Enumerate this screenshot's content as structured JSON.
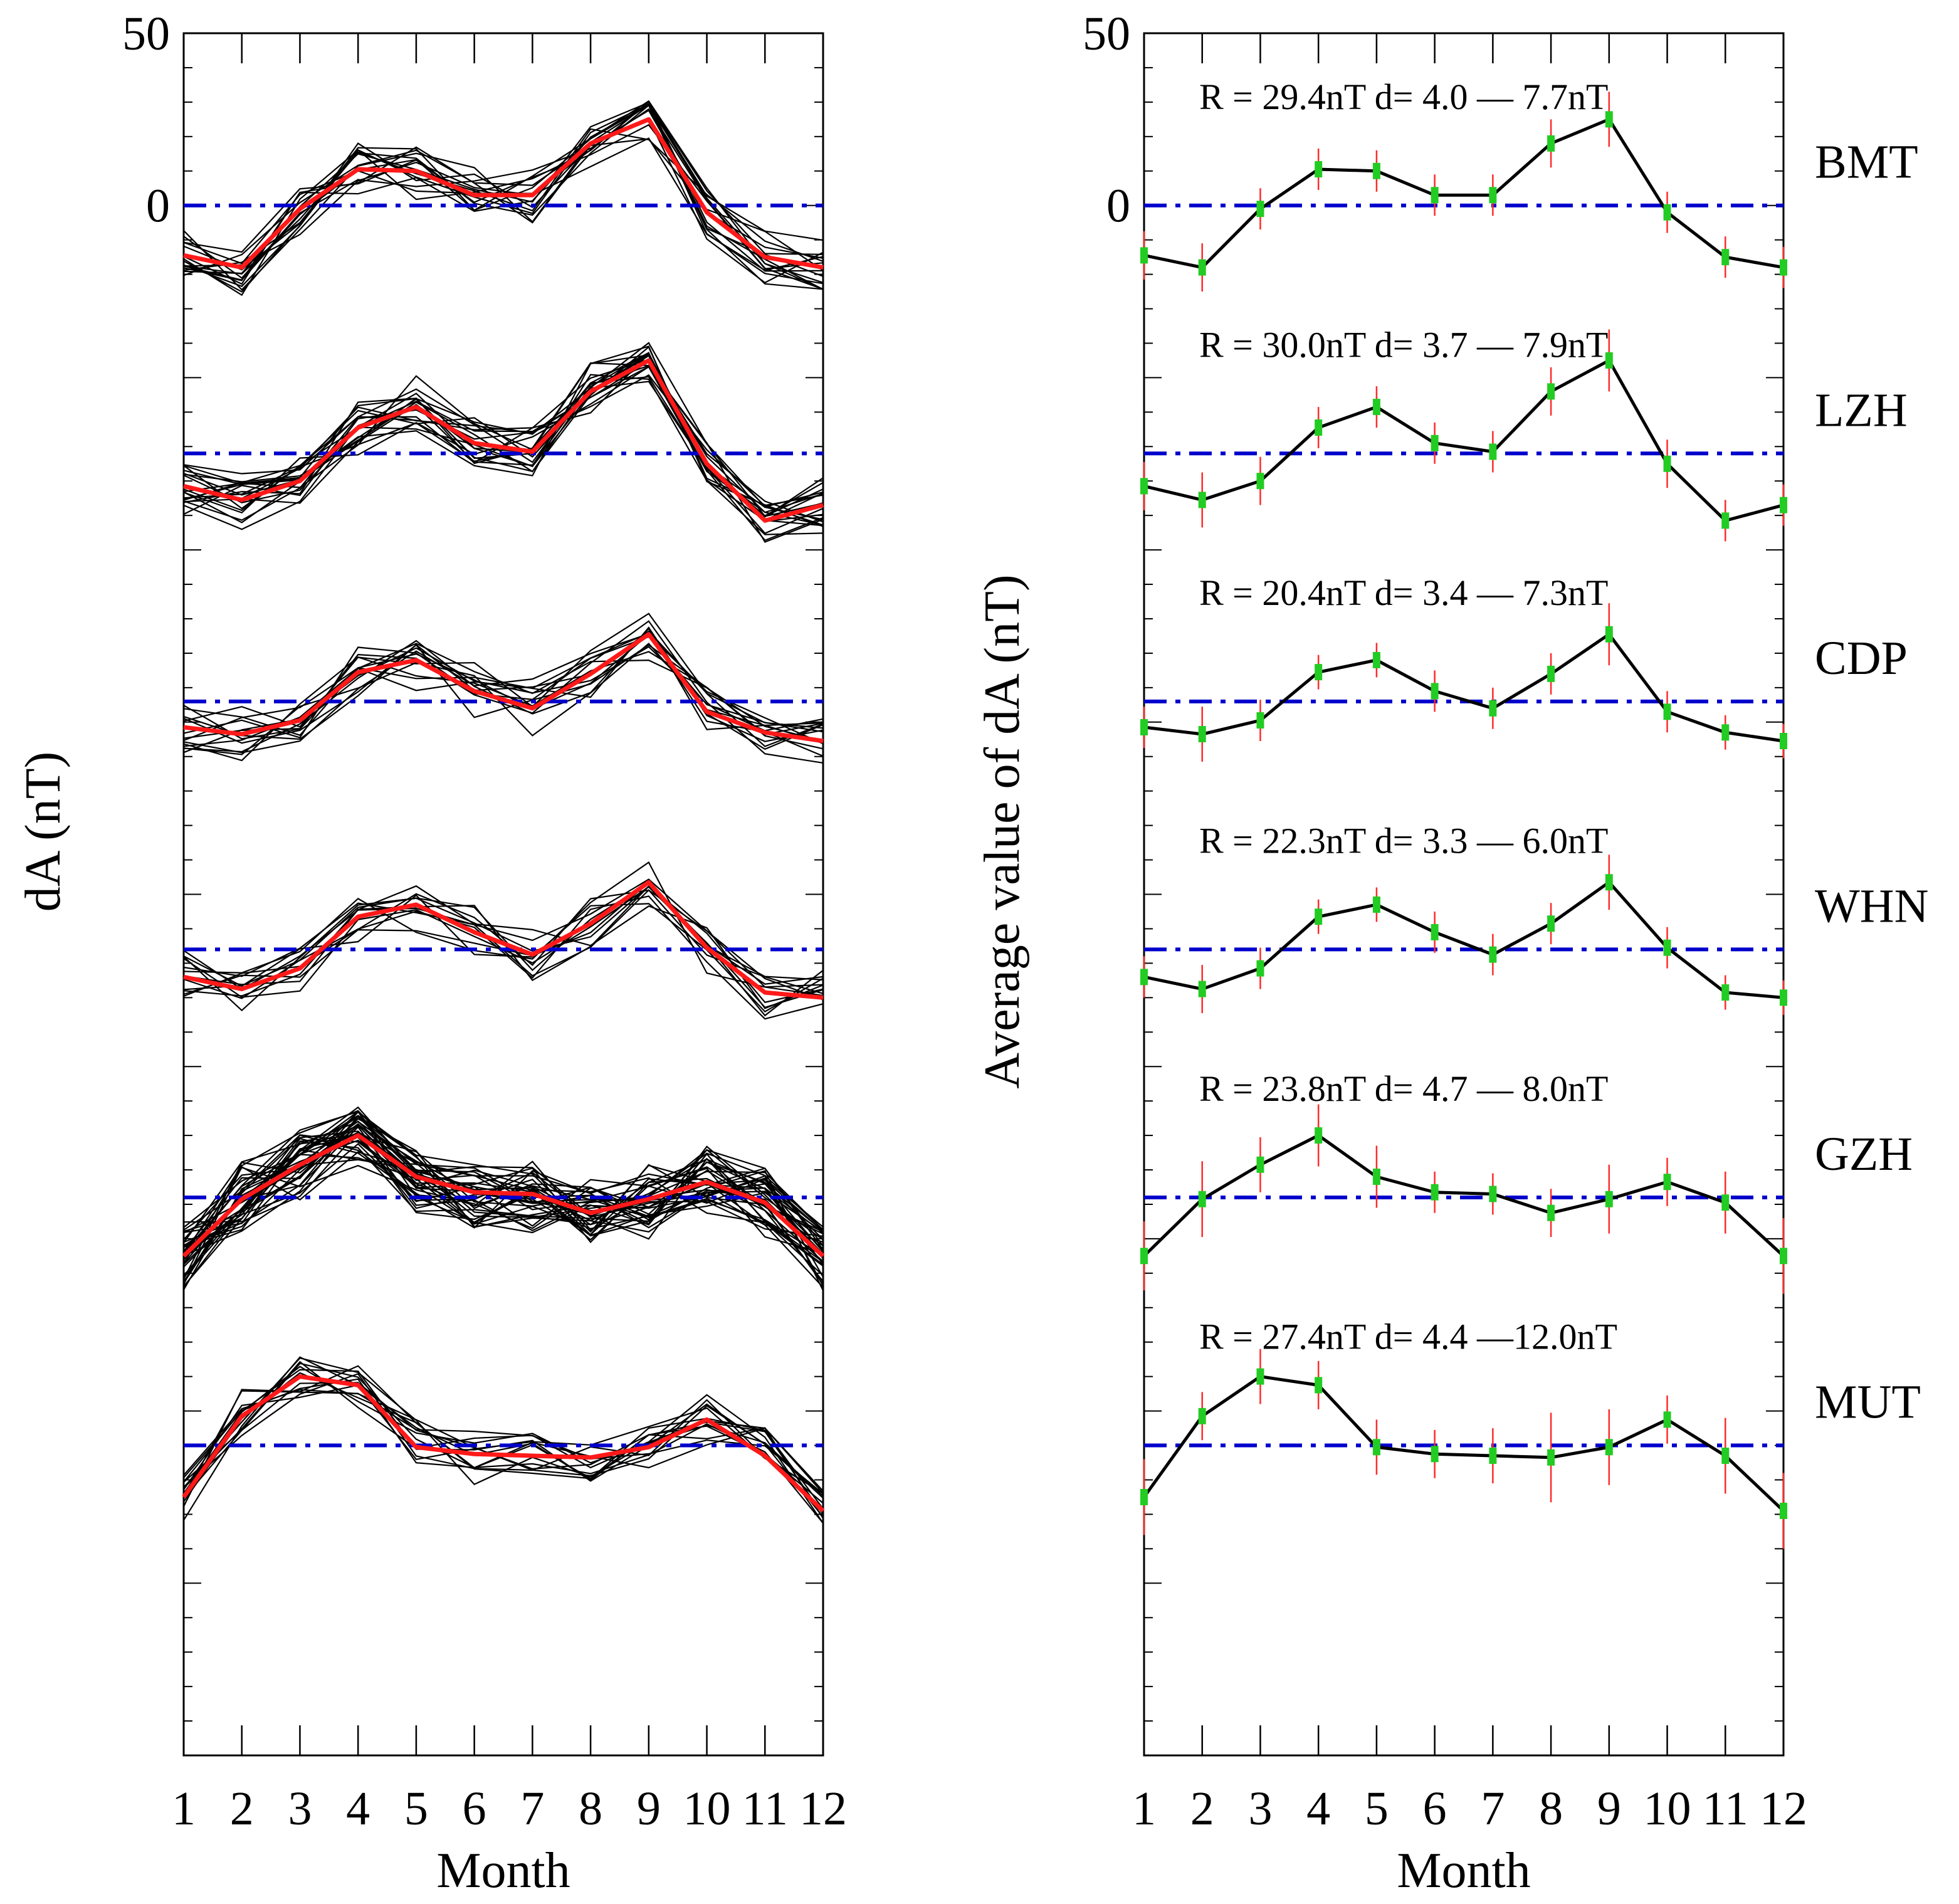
{
  "chart_data": [
    {
      "type": "line",
      "panel": "left",
      "xlabel": "Month",
      "ylabel": "dA (nT)",
      "x": [
        1,
        2,
        3,
        4,
        5,
        6,
        7,
        8,
        9,
        10,
        11,
        12
      ],
      "x_tick_labels": [
        "1",
        "2",
        "3",
        "4",
        "5",
        "6",
        "7",
        "8",
        "9",
        "10",
        "11",
        "12"
      ],
      "y_tick_labels": [
        "50",
        "0"
      ],
      "ylim": [
        -450,
        50
      ],
      "reference_line_color": "#0000cc",
      "mean_line_color": "#ff1a1a",
      "individual_line_color": "#000000",
      "stations": [
        {
          "name": "BMT",
          "offset": 0,
          "n_lines": 16,
          "mean": [
            -14.5,
            -18.0,
            -1.0,
            10.5,
            10.0,
            3.0,
            3.0,
            18.0,
            25.0,
            -2.0,
            -15.0,
            -18.0
          ]
        },
        {
          "name": "LZH",
          "offset": -72,
          "n_lines": 20,
          "mean": [
            -9.5,
            -13.5,
            -8.0,
            7.5,
            13.5,
            3.0,
            0.5,
            18.0,
            27.0,
            -3.0,
            -19.5,
            -15.0
          ]
        },
        {
          "name": "CDP",
          "offset": -144,
          "n_lines": 14,
          "mean": [
            -7.5,
            -9.5,
            -5.5,
            8.5,
            12.0,
            3.0,
            -2.0,
            8.0,
            19.5,
            -3.0,
            -9.0,
            -11.5
          ]
        },
        {
          "name": "WHN",
          "offset": -216,
          "n_lines": 12,
          "mean": [
            -8.0,
            -11.5,
            -5.5,
            9.5,
            13.0,
            5.0,
            -1.5,
            7.5,
            19.5,
            0.5,
            -12.5,
            -14.0
          ]
        },
        {
          "name": "GZH",
          "offset": -288,
          "n_lines": 36,
          "mean": [
            -17.0,
            -0.5,
            9.5,
            18.0,
            6.0,
            1.5,
            1.0,
            -4.5,
            -0.5,
            4.5,
            -1.5,
            -17.0
          ]
        },
        {
          "name": "MUT",
          "offset": -360,
          "n_lines": 14,
          "mean": [
            -15.0,
            8.5,
            20.0,
            17.5,
            -0.5,
            -2.5,
            -3.0,
            -3.5,
            -0.5,
            7.5,
            -3.0,
            -19.0
          ]
        }
      ]
    },
    {
      "type": "line",
      "panel": "right",
      "xlabel": "Month",
      "ylabel": "Average value of dA (nT)",
      "x": [
        1,
        2,
        3,
        4,
        5,
        6,
        7,
        8,
        9,
        10,
        11,
        12
      ],
      "x_tick_labels": [
        "1",
        "2",
        "3",
        "4",
        "5",
        "6",
        "7",
        "8",
        "9",
        "10",
        "11",
        "12"
      ],
      "y_tick_labels": [
        "50",
        "0"
      ],
      "ylim": [
        -450,
        50
      ],
      "line_color": "#000000",
      "marker_color": "#22cc22",
      "errorbar_color": "#ff2a2a",
      "reference_line_color": "#0000cc",
      "stations": [
        {
          "name": "BMT",
          "stat": "R = 29.4nT  d= 4.0 — 7.7nT",
          "offset": 0,
          "mean": [
            -14.5,
            -18.0,
            -1.0,
            10.5,
            10.0,
            3.0,
            3.0,
            18.0,
            25.0,
            -2.0,
            -15.0,
            -18.0
          ],
          "err": [
            7,
            7,
            6,
            6,
            6,
            6,
            6,
            7,
            8,
            6,
            6,
            6
          ]
        },
        {
          "name": "LZH",
          "stat": "R = 30.0nT  d= 3.7 — 7.9nT",
          "offset": -72,
          "mean": [
            -9.5,
            -13.5,
            -8.0,
            7.5,
            13.5,
            3.0,
            0.5,
            18.0,
            27.0,
            -3.0,
            -19.5,
            -15.0
          ],
          "err": [
            7,
            8,
            7,
            6,
            6,
            6,
            6,
            7,
            9,
            7,
            6,
            6
          ]
        },
        {
          "name": "CDP",
          "stat": "R = 20.4nT  d= 3.4 — 7.3nT",
          "offset": -144,
          "mean": [
            -7.5,
            -9.5,
            -5.5,
            8.5,
            12.0,
            3.0,
            -2.0,
            8.0,
            19.5,
            -3.0,
            -9.0,
            -11.5
          ],
          "err": [
            6,
            8,
            6,
            5,
            5,
            6,
            6,
            6,
            9,
            6,
            5,
            5
          ]
        },
        {
          "name": "WHN",
          "stat": "R = 22.3nT  d= 3.3 — 6.0nT",
          "offset": -216,
          "mean": [
            -8.0,
            -11.5,
            -5.5,
            9.5,
            13.0,
            5.0,
            -1.5,
            7.5,
            19.5,
            0.5,
            -12.5,
            -14.0
          ],
          "err": [
            6,
            7,
            6,
            5,
            5,
            6,
            6,
            6,
            8,
            6,
            5,
            5
          ]
        },
        {
          "name": "GZH",
          "stat": "R = 23.8nT  d= 4.7 — 8.0nT",
          "offset": -288,
          "mean": [
            -17.0,
            -0.5,
            9.5,
            18.0,
            6.0,
            1.5,
            1.0,
            -4.5,
            -0.5,
            4.5,
            -1.5,
            -17.0
          ],
          "err": [
            10,
            11,
            8,
            9,
            9,
            6,
            6,
            7,
            10,
            7,
            9,
            11
          ]
        },
        {
          "name": "MUT",
          "stat": "R = 27.4nT  d= 4.4 —12.0nT",
          "offset": -360,
          "mean": [
            -15.0,
            8.5,
            20.0,
            17.5,
            -0.5,
            -2.5,
            -3.0,
            -3.5,
            -0.5,
            7.5,
            -3.0,
            -19.0
          ],
          "err": [
            11,
            7,
            8,
            7,
            8,
            7,
            8,
            13,
            11,
            7,
            11,
            11
          ]
        }
      ]
    }
  ]
}
